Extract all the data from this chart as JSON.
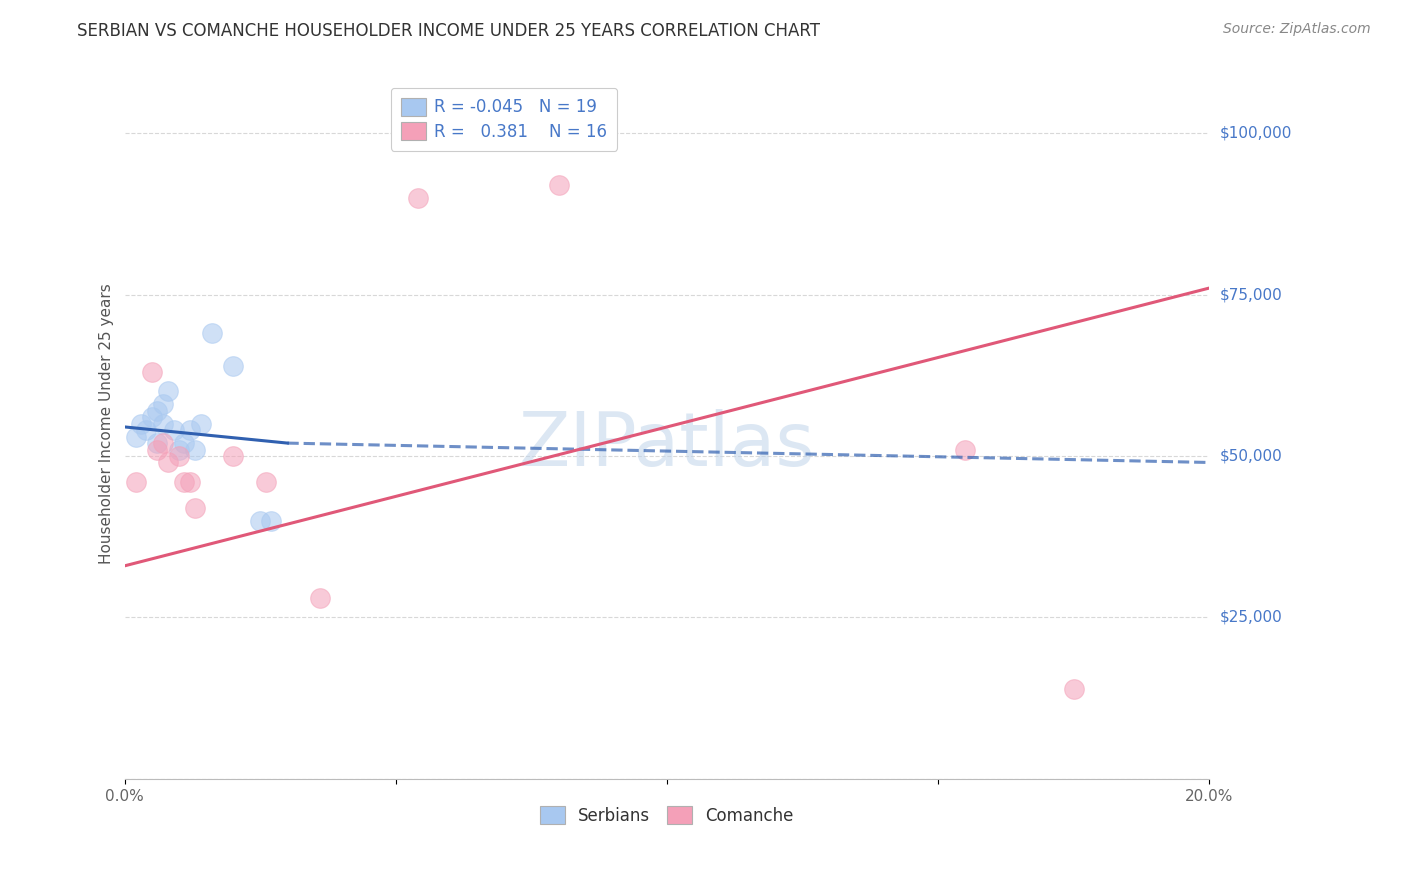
{
  "title": "SERBIAN VS COMANCHE HOUSEHOLDER INCOME UNDER 25 YEARS CORRELATION CHART",
  "source": "Source: ZipAtlas.com",
  "ylabel_label": "Householder Income Under 25 years",
  "watermark": "ZIPatlas",
  "legend_serbian_label": "Serbians",
  "legend_comanche_label": "Comanche",
  "r_serbian": "-0.045",
  "n_serbian": "19",
  "r_comanche": "0.381",
  "n_comanche": "16",
  "serbian_color": "#a8c8f0",
  "comanche_color": "#f4a0b8",
  "line_serbian_color": "#3060b0",
  "line_comanche_color": "#e05878",
  "xlim": [
    0.0,
    0.2
  ],
  "ylim": [
    0,
    110000
  ],
  "yticks": [
    0,
    25000,
    50000,
    75000,
    100000
  ],
  "xticks": [
    0.0,
    0.05,
    0.1,
    0.15,
    0.2
  ],
  "xtick_labels": [
    "0.0%",
    "",
    "",
    "",
    "20.0%"
  ],
  "ytick_labels": [
    "",
    "$25,000",
    "$50,000",
    "$75,000",
    "$100,000"
  ],
  "serbian_x": [
    0.002,
    0.003,
    0.004,
    0.005,
    0.006,
    0.006,
    0.007,
    0.007,
    0.008,
    0.009,
    0.01,
    0.011,
    0.012,
    0.013,
    0.014,
    0.016,
    0.02,
    0.025,
    0.027
  ],
  "serbian_y": [
    53000,
    55000,
    54000,
    56000,
    57000,
    52000,
    58000,
    55000,
    60000,
    54000,
    51000,
    52000,
    54000,
    51000,
    55000,
    69000,
    64000,
    40000,
    40000
  ],
  "comanche_x": [
    0.002,
    0.005,
    0.006,
    0.007,
    0.008,
    0.01,
    0.011,
    0.012,
    0.013,
    0.02,
    0.026,
    0.036,
    0.054,
    0.08,
    0.155,
    0.175
  ],
  "comanche_y": [
    46000,
    63000,
    51000,
    52000,
    49000,
    50000,
    46000,
    46000,
    42000,
    50000,
    46000,
    28000,
    90000,
    92000,
    51000,
    14000
  ],
  "background_color": "#ffffff",
  "grid_color": "#d8d8d8",
  "title_color": "#333333",
  "axis_label_color": "#555555",
  "right_label_color": "#4878c8",
  "title_fontsize": 12,
  "axis_label_fontsize": 11,
  "tick_fontsize": 11,
  "legend_fontsize": 12,
  "source_fontsize": 10,
  "marker_size": 200,
  "marker_alpha": 0.55,
  "line_width": 2.2,
  "line_serbian_style": "-",
  "line_comanche_style": "-"
}
